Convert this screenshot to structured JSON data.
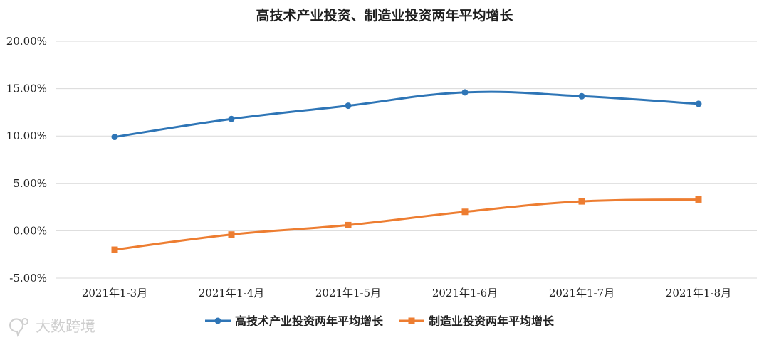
{
  "chart_data": {
    "type": "line",
    "title": "高技术产业投资、制造业投资两年平均增长",
    "categories": [
      "2021年1-3月",
      "2021年1-4月",
      "2021年1-5月",
      "2021年1-6月",
      "2021年1-7月",
      "2021年1-8月"
    ],
    "yticks": [
      "20.00%",
      "15.00%",
      "10.00%",
      "5.00%",
      "0.00%",
      "-5.00%"
    ],
    "ylim": [
      -5,
      20
    ],
    "grid": true,
    "legend_position": "bottom",
    "series": [
      {
        "name": "高技术产业投资两年平均增长",
        "color": "#2e75b6",
        "marker": "circle",
        "values": [
          9.9,
          11.8,
          13.2,
          14.6,
          14.2,
          13.4
        ]
      },
      {
        "name": "制造业投资两年平均增长",
        "color": "#ed7d31",
        "marker": "square",
        "values": [
          -2.0,
          -0.4,
          0.6,
          2.0,
          3.1,
          3.3
        ]
      }
    ]
  },
  "watermark": {
    "text": "大数跨境"
  }
}
